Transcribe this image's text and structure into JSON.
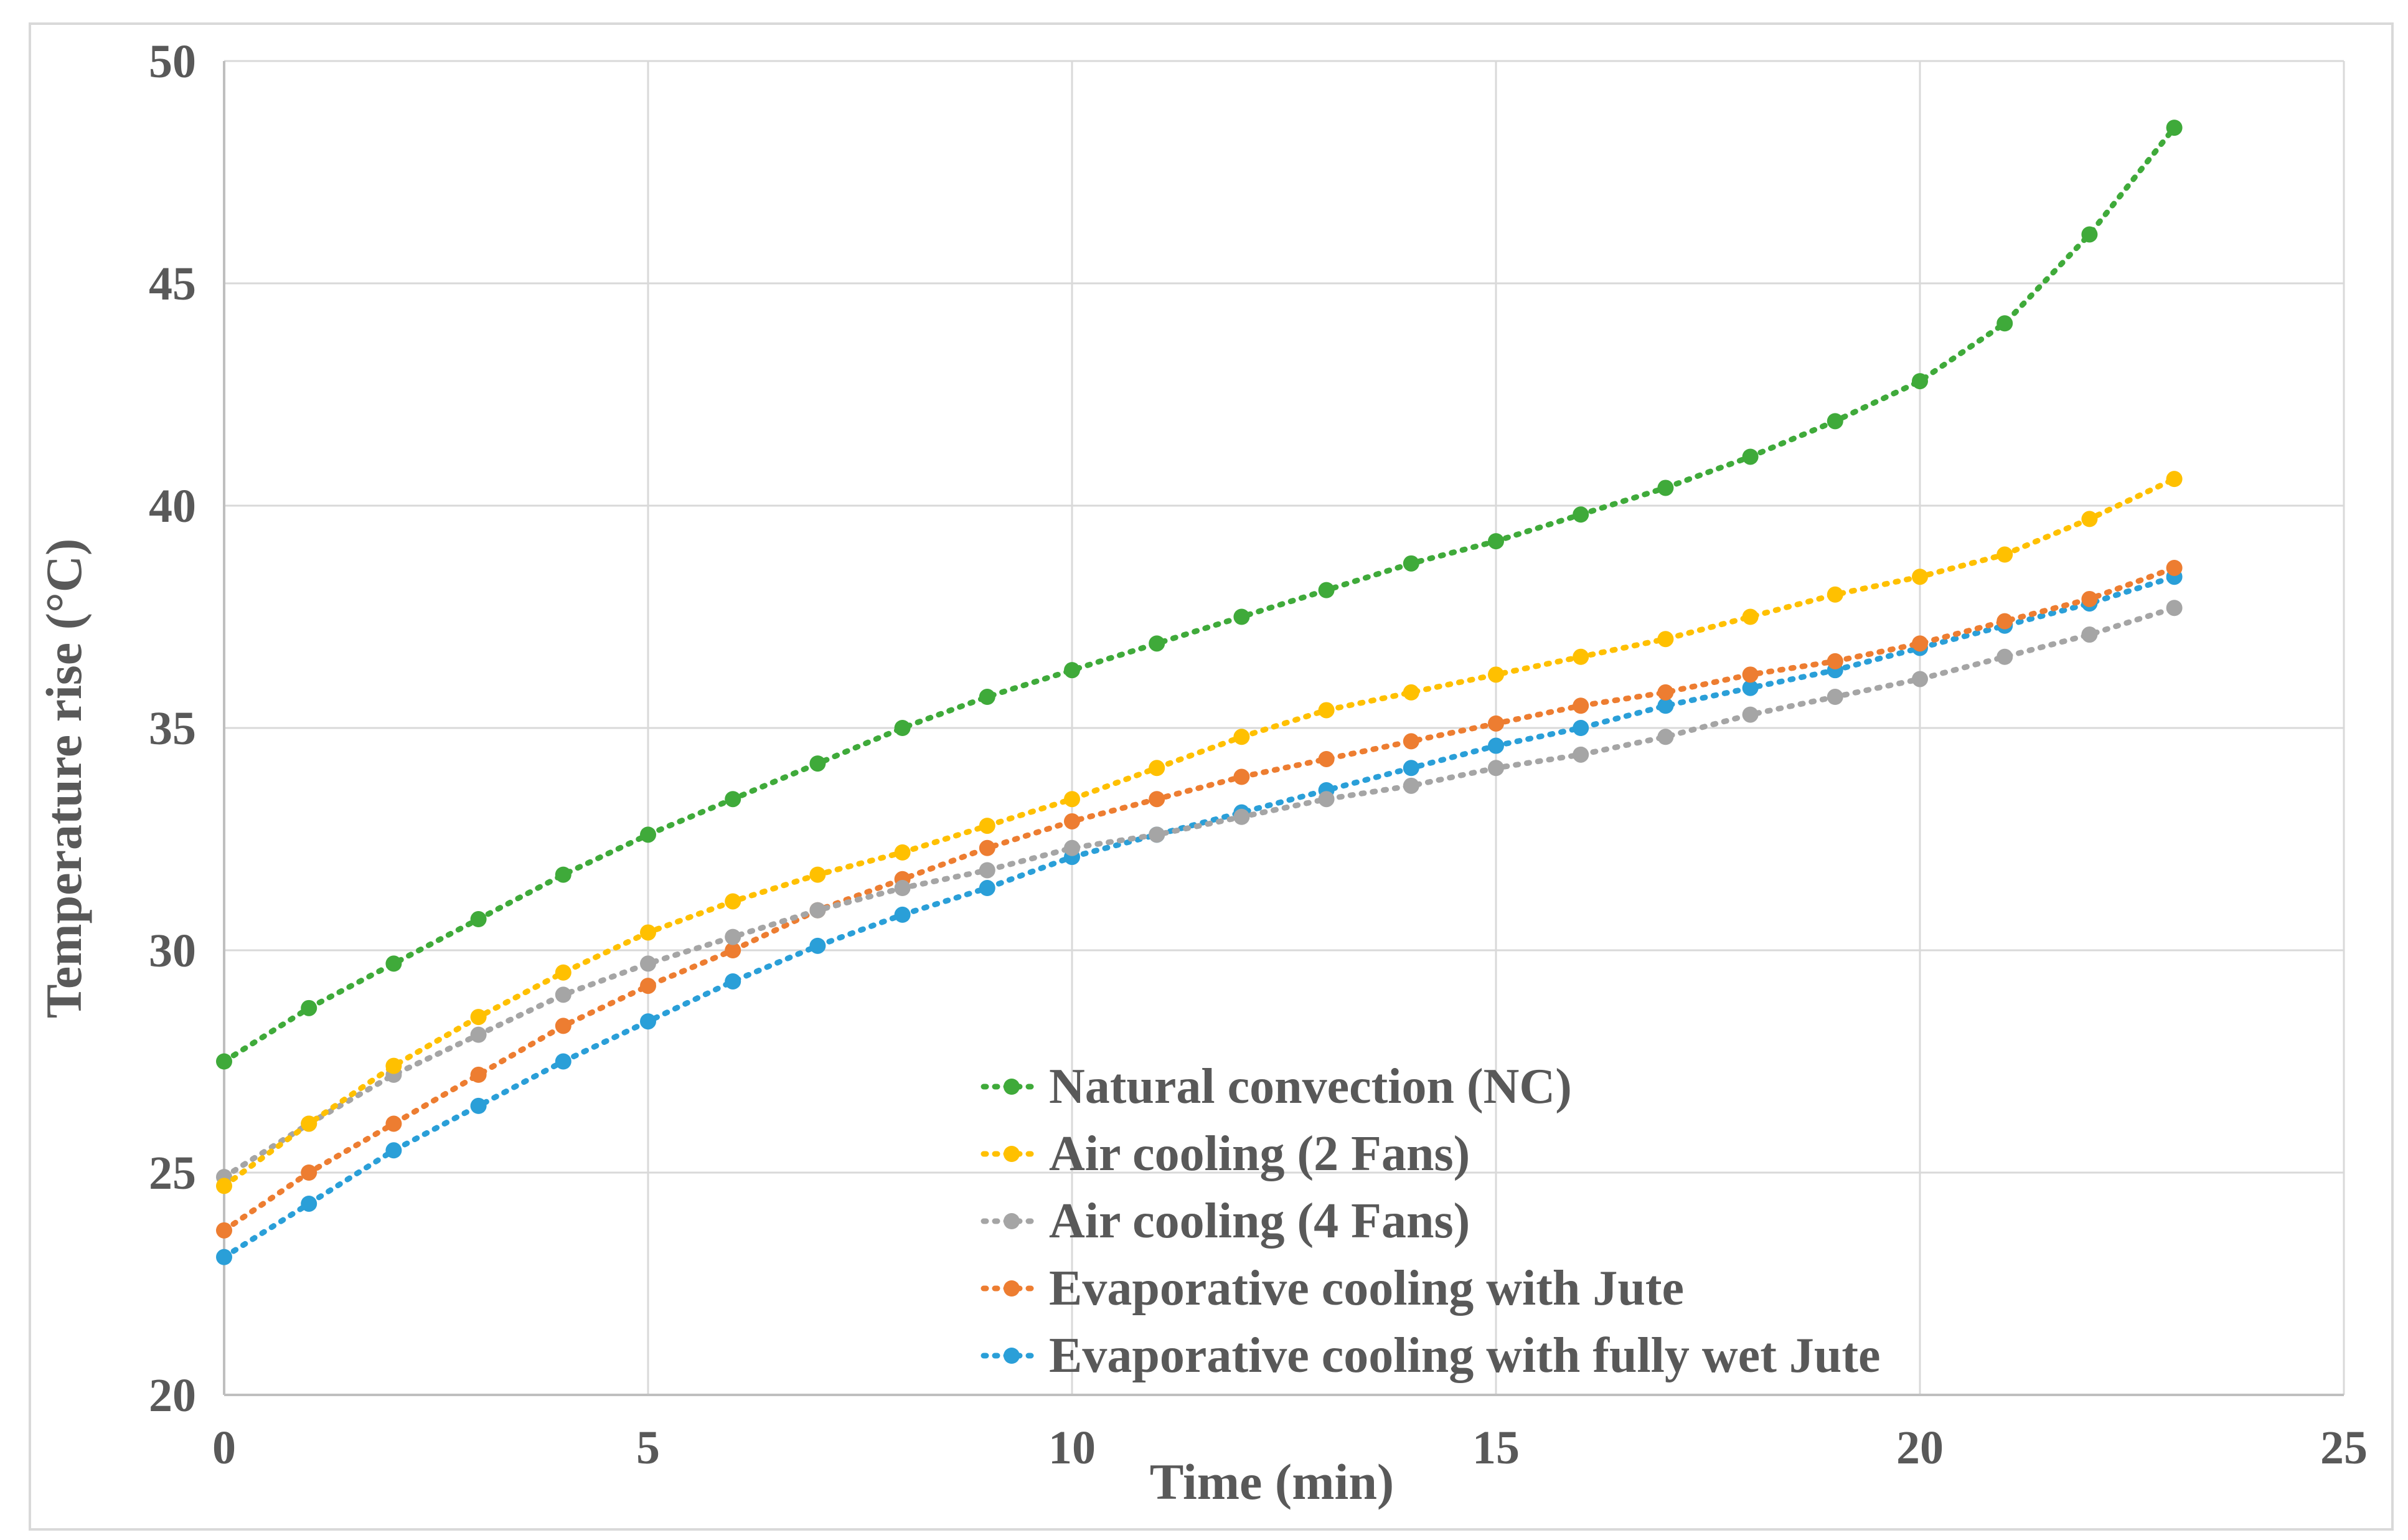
{
  "chart_data": {
    "type": "line",
    "title": "",
    "xlabel": "Time (min)",
    "ylabel": "Temperature rise (°C)",
    "xlim": [
      0,
      25
    ],
    "ylim": [
      20,
      50
    ],
    "xticks": [
      "0",
      "5",
      "10",
      "15",
      "20",
      "25"
    ],
    "yticks": [
      "20",
      "25",
      "30",
      "35",
      "40",
      "45",
      "50"
    ],
    "grid": true,
    "legend_position": "bottom-center",
    "x": [
      0,
      1,
      2,
      3,
      4,
      5,
      6,
      7,
      8,
      9,
      10,
      11,
      12,
      13,
      14,
      15,
      16,
      17,
      18,
      19,
      20,
      21,
      22,
      23
    ],
    "series": [
      {
        "name": "Natural convection (NC)",
        "color": "#3FAA3A",
        "values": [
          27.5,
          28.7,
          29.7,
          30.7,
          31.7,
          32.6,
          33.4,
          34.2,
          35.0,
          35.7,
          36.3,
          36.9,
          37.5,
          38.1,
          38.7,
          39.2,
          39.8,
          40.4,
          41.1,
          41.9,
          42.8,
          44.1,
          46.1,
          48.5
        ]
      },
      {
        "name": "Air cooling (2 Fans)",
        "color": "#FFC000",
        "values": [
          24.7,
          26.1,
          27.4,
          28.5,
          29.5,
          30.4,
          31.1,
          31.7,
          32.2,
          32.8,
          33.4,
          34.1,
          34.8,
          35.4,
          35.8,
          36.2,
          36.6,
          37.0,
          37.5,
          38.0,
          38.4,
          38.9,
          39.7,
          40.6
        ]
      },
      {
        "name": "Air cooling (4 Fans)",
        "color": "#A5A5A5",
        "values": [
          24.9,
          26.1,
          27.2,
          28.1,
          29.0,
          29.7,
          30.3,
          30.9,
          31.4,
          31.8,
          32.3,
          32.6,
          33.0,
          33.4,
          33.7,
          34.1,
          34.4,
          34.8,
          35.3,
          35.7,
          36.1,
          36.6,
          37.1,
          37.7
        ]
      },
      {
        "name": "Evaporative cooling with Jute",
        "color": "#ED7D31",
        "values": [
          23.7,
          25.0,
          26.1,
          27.2,
          28.3,
          29.2,
          30.0,
          30.9,
          31.6,
          32.3,
          32.9,
          33.4,
          33.9,
          34.3,
          34.7,
          35.1,
          35.5,
          35.8,
          36.2,
          36.5,
          36.9,
          37.4,
          37.9,
          38.6
        ]
      },
      {
        "name": "Evaporative cooling with fully wet Jute",
        "color": "#2A9FD8",
        "values": [
          23.1,
          24.3,
          25.5,
          26.5,
          27.5,
          28.4,
          29.3,
          30.1,
          30.8,
          31.4,
          32.1,
          32.6,
          33.1,
          33.6,
          34.1,
          34.6,
          35.0,
          35.5,
          35.9,
          36.3,
          36.8,
          37.3,
          37.8,
          38.4
        ]
      }
    ]
  }
}
